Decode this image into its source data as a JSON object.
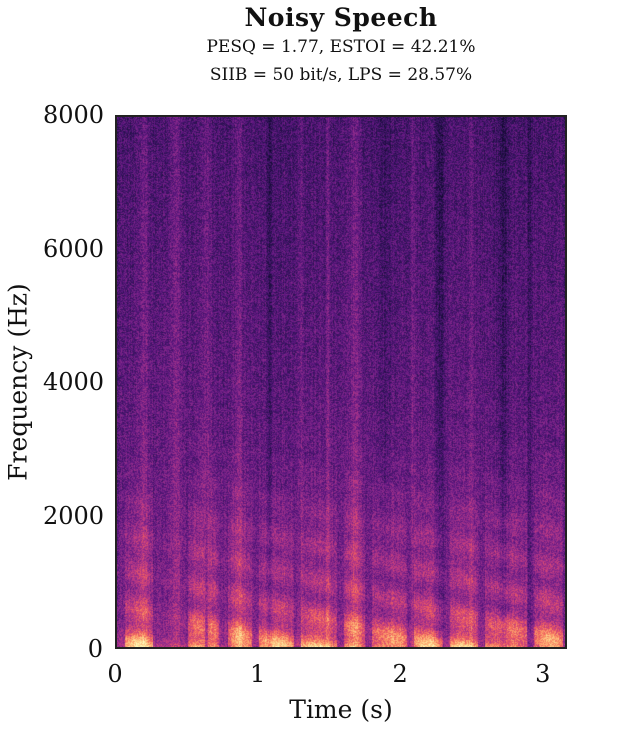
{
  "chart_data": {
    "type": "heatmap",
    "title": "Noisy Speech",
    "subtitle_lines": [
      "PESQ = 1.77, ESTOI = 42.21%",
      "SIIB = 50 bit/s, LPS = 28.57%"
    ],
    "xlabel": "Time (s)",
    "ylabel": "Frequency (Hz)",
    "xlim": [
      0,
      3.17
    ],
    "ylim": [
      0,
      8000
    ],
    "xticks": [
      {
        "value": 0,
        "label": "0"
      },
      {
        "value": 1,
        "label": "1"
      },
      {
        "value": 2,
        "label": "2"
      },
      {
        "value": 3,
        "label": "3"
      }
    ],
    "yticks": [
      {
        "value": 0,
        "label": "0"
      },
      {
        "value": 2000,
        "label": "2000"
      },
      {
        "value": 4000,
        "label": "4000"
      },
      {
        "value": 6000,
        "label": "6000"
      },
      {
        "value": 8000,
        "label": "8000"
      }
    ],
    "colormap": [
      "#0d0829",
      "#2c1354",
      "#5a167e",
      "#8a2a8c",
      "#c03a83",
      "#ef5d5e",
      "#fc9f6a",
      "#fcd88f",
      "#fcfdbf"
    ],
    "grid": false
  }
}
